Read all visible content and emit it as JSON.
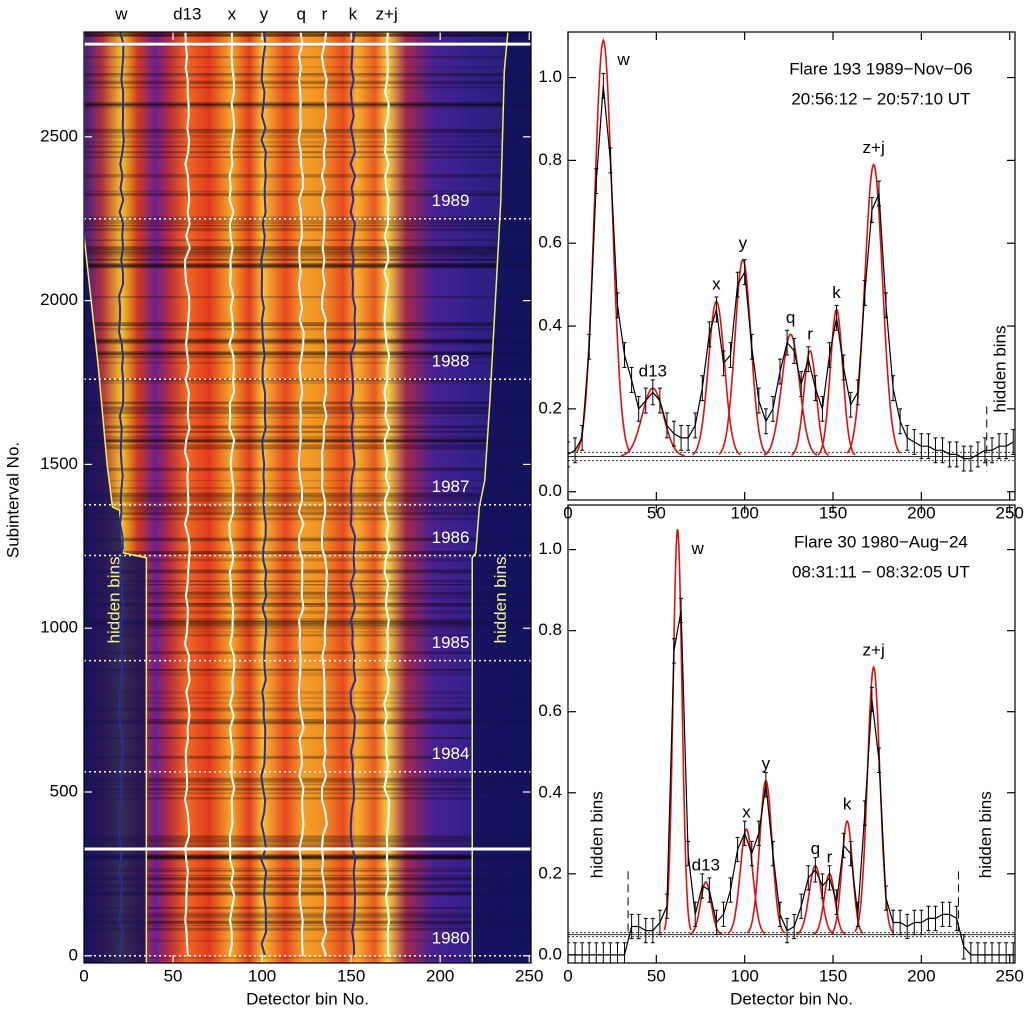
{
  "chart_data": [
    {
      "type": "heatmap",
      "ylabel": "Subinterval No.",
      "xlabel": "Detector bin No.",
      "xlim": [
        0,
        251
      ],
      "ylim": [
        -22,
        2820
      ],
      "xticks": [
        0,
        50,
        100,
        150,
        200,
        250
      ],
      "yticks": [
        0,
        500,
        1000,
        1500,
        2000,
        2500
      ],
      "line_labels": [
        {
          "label": "w",
          "x": 21
        },
        {
          "label": "d13",
          "x": 58
        },
        {
          "label": "x",
          "x": 83
        },
        {
          "label": "y",
          "x": 101
        },
        {
          "label": "q",
          "x": 122
        },
        {
          "label": "r",
          "x": 135
        },
        {
          "label": "k",
          "x": 151
        },
        {
          "label": "z+j",
          "x": 170
        }
      ],
      "years": [
        {
          "label": "1989",
          "y": 2250
        },
        {
          "label": "1988",
          "y": 1760
        },
        {
          "label": "1987",
          "y": 1377
        },
        {
          "label": "1986",
          "y": 1222
        },
        {
          "label": "1985",
          "y": 901
        },
        {
          "label": "1984",
          "y": 562
        },
        {
          "label": "1980",
          "y": 0
        }
      ],
      "bounds": [
        326,
        2783
      ],
      "hidden_label": "hidden bins",
      "hidden_edges": [
        {
          "x": [
            0,
            0,
            3,
            8,
            13,
            16,
            20,
            22,
            35,
            35
          ],
          "y": [
            2820,
            2200,
            2050,
            1800,
            1500,
            1370,
            1360,
            1230,
            1215,
            -22
          ]
        },
        {
          "x": [
            238,
            236,
            234,
            231,
            228,
            225,
            222,
            220,
            218,
            218
          ],
          "y": [
            2820,
            2700,
            2300,
            2000,
            1700,
            1450,
            1370,
            1230,
            1215,
            -22
          ]
        }
      ]
    },
    {
      "type": "spectrum",
      "title": "Flare 193 1989−Nov−06",
      "subtitle": "20:56:12 − 20:57:10 UT",
      "xlim": [
        0,
        253
      ],
      "ylim": [
        -0.02,
        1.11
      ],
      "xticks": [
        0,
        50,
        100,
        150,
        200,
        250
      ],
      "yticks": [
        {
          "value": 0,
          "label": "0.0"
        },
        {
          "value": 0.2,
          "label": "0.2"
        },
        {
          "value": 0.4,
          "label": "0.4"
        },
        {
          "value": 0.6,
          "label": "0.6"
        },
        {
          "value": 0.8,
          "label": "0.8"
        },
        {
          "value": 1,
          "label": "1.0"
        }
      ],
      "x": [
        0,
        4,
        8,
        12,
        16,
        20,
        24,
        28,
        32,
        36,
        40,
        44,
        48,
        52,
        56,
        60,
        64,
        68,
        72,
        76,
        80,
        84,
        88,
        92,
        96,
        100,
        104,
        108,
        112,
        116,
        120,
        124,
        128,
        132,
        136,
        140,
        144,
        148,
        152,
        156,
        160,
        164,
        168,
        172,
        176,
        180,
        184,
        188,
        192,
        196,
        200,
        204,
        208,
        212,
        216,
        220,
        224,
        228,
        232,
        236,
        240,
        244,
        248,
        252
      ],
      "values": [
        0.09,
        0.1,
        0.13,
        0.35,
        0.75,
        0.98,
        0.8,
        0.45,
        0.33,
        0.27,
        0.2,
        0.22,
        0.24,
        0.22,
        0.16,
        0.14,
        0.13,
        0.13,
        0.16,
        0.25,
        0.38,
        0.44,
        0.31,
        0.33,
        0.5,
        0.53,
        0.35,
        0.22,
        0.17,
        0.2,
        0.29,
        0.36,
        0.34,
        0.26,
        0.32,
        0.25,
        0.2,
        0.33,
        0.42,
        0.3,
        0.21,
        0.24,
        0.48,
        0.68,
        0.72,
        0.45,
        0.25,
        0.17,
        0.13,
        0.12,
        0.11,
        0.11,
        0.1,
        0.1,
        0.09,
        0.09,
        0.08,
        0.08,
        0.09,
        0.1,
        0.1,
        0.11,
        0.11,
        0.12
      ],
      "error": 0.03,
      "color": "#000000",
      "fit_color": "#dd1111",
      "baselines": [
        0.075,
        0.085,
        0.095
      ],
      "lines": [
        {
          "label": "w",
          "center": 20,
          "peak": 1.09,
          "sigma": 5
        },
        {
          "label": "d13",
          "center": 48,
          "peak": 0.25,
          "sigma": 6
        },
        {
          "label": "x",
          "center": 84,
          "peak": 0.46,
          "sigma": 4.5
        },
        {
          "label": "y",
          "center": 99,
          "peak": 0.56,
          "sigma": 4.5
        },
        {
          "label": "q",
          "center": 126,
          "peak": 0.38,
          "sigma": 5
        },
        {
          "label": "r",
          "center": 137,
          "peak": 0.34,
          "sigma": 3.5
        },
        {
          "label": "k",
          "center": 152,
          "peak": 0.44,
          "sigma": 3.5
        },
        {
          "label": "z+j",
          "center": 173,
          "peak": 0.79,
          "sigma": 5
        }
      ],
      "hidden_label": "hidden bins",
      "hidden_edges": [
        237
      ]
    },
    {
      "type": "spectrum",
      "title": "Flare 30 1980−Aug−24",
      "subtitle": "08:31:11 − 08:32:05 UT",
      "xlabel": "Detector bin No.",
      "xlim": [
        0,
        253
      ],
      "ylim": [
        -0.02,
        1.11
      ],
      "xticks": [
        0,
        50,
        100,
        150,
        200,
        250
      ],
      "yticks": [
        {
          "value": 0,
          "label": "0.0"
        },
        {
          "value": 0.2,
          "label": "0.2"
        },
        {
          "value": 0.4,
          "label": "0.4"
        },
        {
          "value": 0.6,
          "label": "0.6"
        },
        {
          "value": 0.8,
          "label": "0.8"
        },
        {
          "value": 1,
          "label": "1.0"
        }
      ],
      "x": [
        0,
        4,
        8,
        12,
        16,
        20,
        24,
        28,
        32,
        36,
        40,
        44,
        48,
        52,
        56,
        60,
        64,
        68,
        72,
        76,
        80,
        84,
        88,
        92,
        96,
        100,
        104,
        108,
        112,
        116,
        120,
        124,
        128,
        132,
        136,
        140,
        144,
        148,
        152,
        156,
        160,
        164,
        168,
        172,
        176,
        180,
        184,
        188,
        192,
        196,
        200,
        204,
        208,
        212,
        216,
        220,
        224,
        228,
        232,
        236,
        240,
        244,
        248,
        252
      ],
      "values": [
        0,
        0,
        0,
        0,
        0,
        0,
        0,
        0,
        0,
        0.07,
        0.07,
        0.06,
        0.06,
        0.08,
        0.12,
        0.75,
        0.85,
        0.25,
        0.1,
        0.17,
        0.16,
        0.08,
        0.1,
        0.16,
        0.26,
        0.3,
        0.25,
        0.3,
        0.42,
        0.25,
        0.1,
        0.06,
        0.07,
        0.12,
        0.19,
        0.21,
        0.17,
        0.19,
        0.13,
        0.27,
        0.25,
        0.1,
        0.35,
        0.63,
        0.48,
        0.14,
        0.08,
        0.08,
        0.07,
        0.08,
        0.08,
        0.09,
        0.09,
        0.1,
        0.1,
        0.09,
        0.02,
        0,
        0,
        0,
        0,
        0,
        0,
        0
      ],
      "error": 0.03,
      "color": "#000000",
      "fit_color": "#dd1111",
      "baselines": [
        0.045,
        0.05,
        0.055
      ],
      "lines": [
        {
          "label": "w",
          "center": 62,
          "peak": 1.05,
          "sigma": 2.5
        },
        {
          "label": "d13",
          "center": 78,
          "peak": 0.18,
          "sigma": 3
        },
        {
          "label": "x",
          "center": 101,
          "peak": 0.31,
          "sigma": 3.5
        },
        {
          "label": "y",
          "center": 112,
          "peak": 0.43,
          "sigma": 3.5
        },
        {
          "label": "q",
          "center": 140,
          "peak": 0.22,
          "sigma": 3.5
        },
        {
          "label": "r",
          "center": 148,
          "peak": 0.2,
          "sigma": 3
        },
        {
          "label": "k",
          "center": 158,
          "peak": 0.33,
          "sigma": 3
        },
        {
          "label": "z+j",
          "center": 173,
          "peak": 0.71,
          "sigma": 3.5
        }
      ],
      "hidden_label": "hidden bins",
      "hidden_edges": [
        34,
        221
      ]
    }
  ]
}
